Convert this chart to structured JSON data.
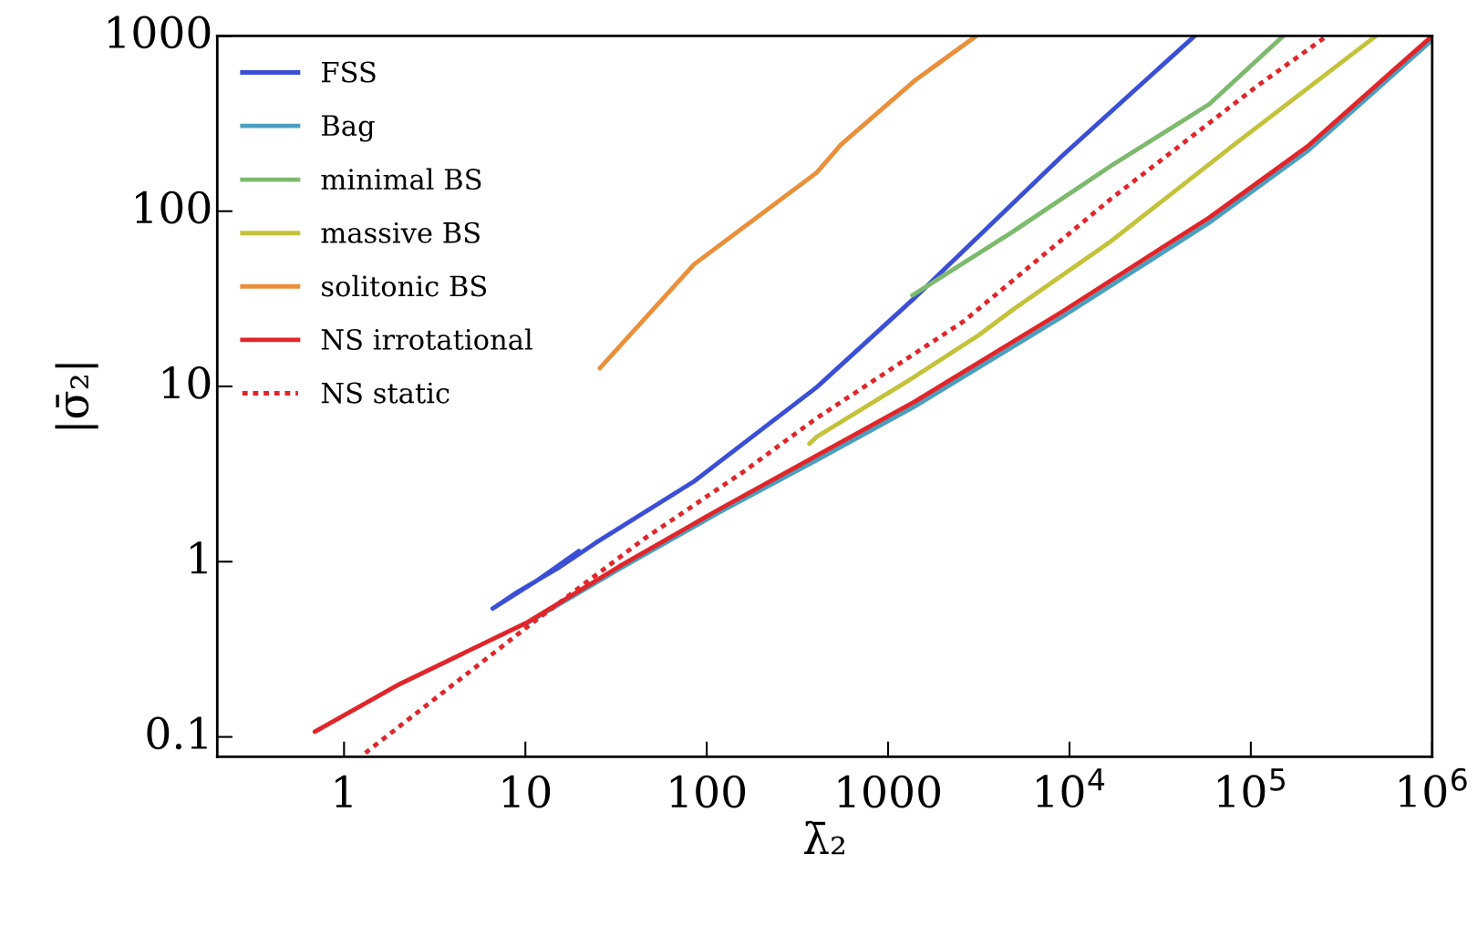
{
  "chart_data": {
    "type": "line",
    "xlabel": "λ̄₂",
    "ylabel": "|σ̄₂|",
    "log": "xy",
    "grid": false,
    "legend": "top left",
    "xlim": [
      0.2,
      1000000
    ],
    "ylim": [
      0.077,
      1000
    ],
    "xticks": [
      1,
      10,
      100,
      1000,
      {
        "value": 10000,
        "label": "10$^{4}$"
      },
      {
        "value": 100000,
        "label": "10$^{5}$"
      },
      {
        "value": 1000000,
        "label": "10$^{6}$"
      }
    ],
    "yticks": [
      0.1,
      1,
      10,
      100,
      1000
    ],
    "series": [
      {
        "name": "FSS",
        "color": "#3b4fd6",
        "line_style": "solid",
        "x": [
          19.7,
          11.6,
          6.6,
          9.0,
          14.9,
          24.4,
          85,
          404,
          1404,
          9120,
          49000
        ],
        "values": [
          1.15,
          0.78,
          0.54,
          0.67,
          0.91,
          1.28,
          2.87,
          9.9,
          32.1,
          207,
          1000
        ]
      },
      {
        "name": "Bag",
        "color": "#4a9fc0",
        "line_style": "solid",
        "x": [
          10,
          33,
          116,
          404,
          1404,
          9120,
          59000,
          205000,
          1000000
        ],
        "values": [
          0.44,
          0.91,
          1.9,
          3.8,
          7.7,
          25,
          86,
          220,
          950
        ]
      },
      {
        "name": "minimal BS",
        "color": "#7dba6e",
        "line_style": "solid",
        "x": [
          1362,
          4900,
          17000,
          59000,
          151000
        ],
        "values": [
          33.1,
          76.7,
          182,
          408,
          1000
        ]
      },
      {
        "name": "massive BS",
        "color": "#c4c23a",
        "line_style": "solid",
        "x": [
          368,
          404,
          1240,
          3160,
          4900,
          17000,
          81000,
          490000
        ],
        "values": [
          4.71,
          5.16,
          10.5,
          19.6,
          27.5,
          67.6,
          240,
          1000
        ]
      },
      {
        "name": "solitonic BS",
        "color": "#ea8f3a",
        "line_style": "solid",
        "x": [
          25.7,
          85,
          404,
          550,
          1404,
          3060
        ],
        "values": [
          12.7,
          49.7,
          166,
          240,
          557,
          1000
        ]
      },
      {
        "name": "NS irrotational",
        "color": "#e0262a",
        "line_style": "solid",
        "x": [
          0.69,
          2.02,
          10.1,
          33,
          116,
          404,
          1404,
          9120,
          59000,
          205000,
          1000000
        ],
        "values": [
          0.107,
          0.2,
          0.447,
          0.94,
          1.98,
          4.03,
          8.2,
          26.7,
          92,
          234,
          1000
        ]
      },
      {
        "name": "NS static",
        "color": "#e0262a",
        "line_style": "dotted",
        "x": [
          1.31,
          10.1,
          45.6,
          158,
          404,
          2620,
          17000,
          110000,
          263000
        ],
        "values": [
          0.081,
          0.42,
          1.36,
          3.24,
          6.6,
          23.6,
          118,
          524,
          1000
        ]
      }
    ]
  }
}
